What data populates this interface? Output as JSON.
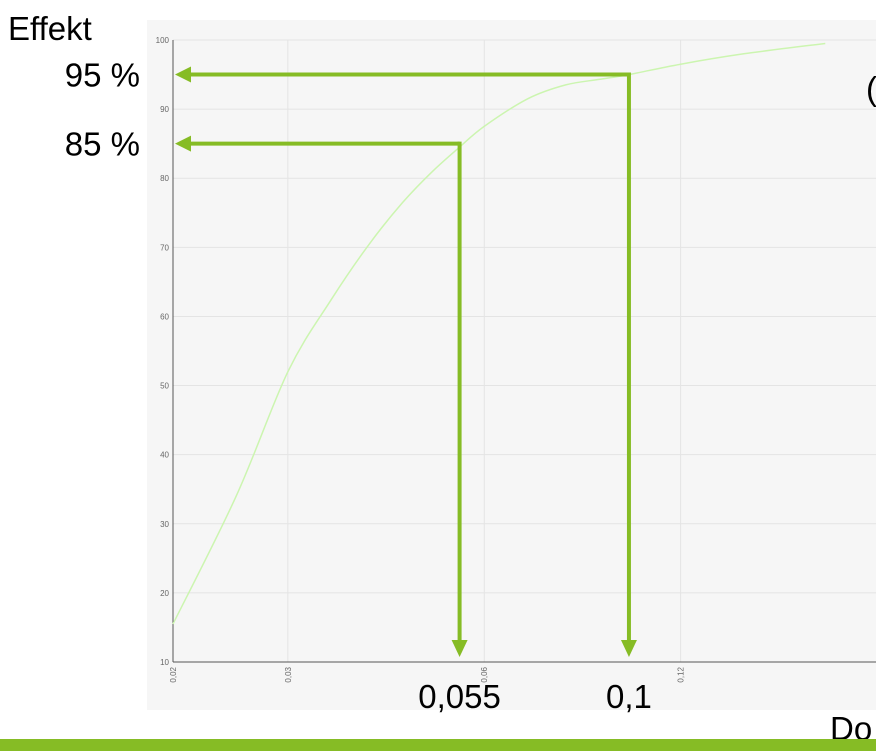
{
  "chart_data": {
    "type": "line",
    "title": "",
    "xlabel": "Do",
    "ylabel": "Effekt",
    "x_scale": "log",
    "xlim": [
      0.02,
      0.2
    ],
    "ylim": [
      10,
      100
    ],
    "x_ticks": [
      "0,02",
      "0,03",
      "0,06",
      "0,12"
    ],
    "x_tick_values": [
      0.02,
      0.03,
      0.06,
      0.12
    ],
    "y_ticks": [
      "10",
      "20",
      "30",
      "40",
      "50",
      "60",
      "70",
      "80",
      "90",
      "100"
    ],
    "y_tick_values": [
      10,
      20,
      30,
      40,
      50,
      60,
      70,
      80,
      90,
      100
    ],
    "grid": true,
    "series": [
      {
        "name": "",
        "color": "#ccf5b0",
        "x": [
          0.02,
          0.025,
          0.03,
          0.035,
          0.04,
          0.045,
          0.05,
          0.055,
          0.06,
          0.07,
          0.08,
          0.09,
          0.1,
          0.12,
          0.15,
          0.2
        ],
        "y": [
          15.5,
          34,
          52,
          62.5,
          70.5,
          76.5,
          81,
          84.5,
          87.5,
          91.5,
          93.5,
          94.3,
          95.0,
          96.5,
          98.0,
          99.5
        ]
      }
    ],
    "annotations": [
      {
        "kind": "arrow-y",
        "x": 0.1,
        "y": 95,
        "label": "95 %",
        "x_label": "0,1"
      },
      {
        "kind": "arrow-y",
        "x": 0.055,
        "y": 85,
        "label": "85 %",
        "x_label": "0,055"
      }
    ],
    "arrow_color": "#86bc25",
    "cut_off_right_label": "("
  },
  "accent_bar_color": "#86bc25"
}
